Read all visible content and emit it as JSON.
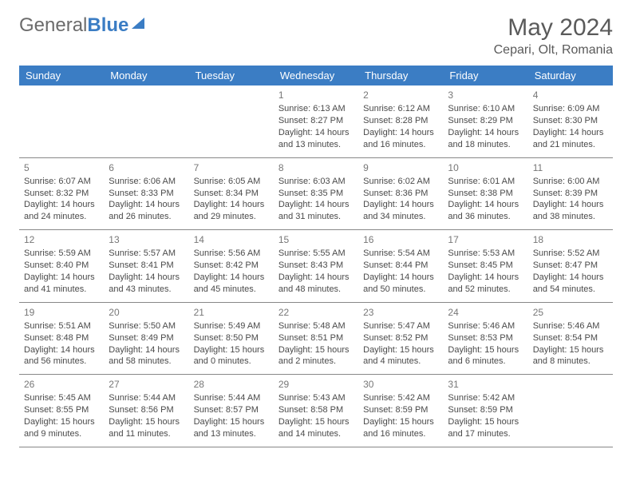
{
  "logo": {
    "word1": "General",
    "word2": "Blue"
  },
  "title": "May 2024",
  "location": "Cepari, Olt, Romania",
  "colors": {
    "header_bg": "#3b7dc4",
    "header_text": "#ffffff",
    "text": "#4a4a4a",
    "border": "#888888",
    "logo_gray": "#6b6b6b",
    "logo_blue": "#3b7dc4"
  },
  "weekdays": [
    "Sunday",
    "Monday",
    "Tuesday",
    "Wednesday",
    "Thursday",
    "Friday",
    "Saturday"
  ],
  "weeks": [
    [
      null,
      null,
      null,
      {
        "day": "1",
        "sunrise": "Sunrise: 6:13 AM",
        "sunset": "Sunset: 8:27 PM",
        "daylight": "Daylight: 14 hours and 13 minutes."
      },
      {
        "day": "2",
        "sunrise": "Sunrise: 6:12 AM",
        "sunset": "Sunset: 8:28 PM",
        "daylight": "Daylight: 14 hours and 16 minutes."
      },
      {
        "day": "3",
        "sunrise": "Sunrise: 6:10 AM",
        "sunset": "Sunset: 8:29 PM",
        "daylight": "Daylight: 14 hours and 18 minutes."
      },
      {
        "day": "4",
        "sunrise": "Sunrise: 6:09 AM",
        "sunset": "Sunset: 8:30 PM",
        "daylight": "Daylight: 14 hours and 21 minutes."
      }
    ],
    [
      {
        "day": "5",
        "sunrise": "Sunrise: 6:07 AM",
        "sunset": "Sunset: 8:32 PM",
        "daylight": "Daylight: 14 hours and 24 minutes."
      },
      {
        "day": "6",
        "sunrise": "Sunrise: 6:06 AM",
        "sunset": "Sunset: 8:33 PM",
        "daylight": "Daylight: 14 hours and 26 minutes."
      },
      {
        "day": "7",
        "sunrise": "Sunrise: 6:05 AM",
        "sunset": "Sunset: 8:34 PM",
        "daylight": "Daylight: 14 hours and 29 minutes."
      },
      {
        "day": "8",
        "sunrise": "Sunrise: 6:03 AM",
        "sunset": "Sunset: 8:35 PM",
        "daylight": "Daylight: 14 hours and 31 minutes."
      },
      {
        "day": "9",
        "sunrise": "Sunrise: 6:02 AM",
        "sunset": "Sunset: 8:36 PM",
        "daylight": "Daylight: 14 hours and 34 minutes."
      },
      {
        "day": "10",
        "sunrise": "Sunrise: 6:01 AM",
        "sunset": "Sunset: 8:38 PM",
        "daylight": "Daylight: 14 hours and 36 minutes."
      },
      {
        "day": "11",
        "sunrise": "Sunrise: 6:00 AM",
        "sunset": "Sunset: 8:39 PM",
        "daylight": "Daylight: 14 hours and 38 minutes."
      }
    ],
    [
      {
        "day": "12",
        "sunrise": "Sunrise: 5:59 AM",
        "sunset": "Sunset: 8:40 PM",
        "daylight": "Daylight: 14 hours and 41 minutes."
      },
      {
        "day": "13",
        "sunrise": "Sunrise: 5:57 AM",
        "sunset": "Sunset: 8:41 PM",
        "daylight": "Daylight: 14 hours and 43 minutes."
      },
      {
        "day": "14",
        "sunrise": "Sunrise: 5:56 AM",
        "sunset": "Sunset: 8:42 PM",
        "daylight": "Daylight: 14 hours and 45 minutes."
      },
      {
        "day": "15",
        "sunrise": "Sunrise: 5:55 AM",
        "sunset": "Sunset: 8:43 PM",
        "daylight": "Daylight: 14 hours and 48 minutes."
      },
      {
        "day": "16",
        "sunrise": "Sunrise: 5:54 AM",
        "sunset": "Sunset: 8:44 PM",
        "daylight": "Daylight: 14 hours and 50 minutes."
      },
      {
        "day": "17",
        "sunrise": "Sunrise: 5:53 AM",
        "sunset": "Sunset: 8:45 PM",
        "daylight": "Daylight: 14 hours and 52 minutes."
      },
      {
        "day": "18",
        "sunrise": "Sunrise: 5:52 AM",
        "sunset": "Sunset: 8:47 PM",
        "daylight": "Daylight: 14 hours and 54 minutes."
      }
    ],
    [
      {
        "day": "19",
        "sunrise": "Sunrise: 5:51 AM",
        "sunset": "Sunset: 8:48 PM",
        "daylight": "Daylight: 14 hours and 56 minutes."
      },
      {
        "day": "20",
        "sunrise": "Sunrise: 5:50 AM",
        "sunset": "Sunset: 8:49 PM",
        "daylight": "Daylight: 14 hours and 58 minutes."
      },
      {
        "day": "21",
        "sunrise": "Sunrise: 5:49 AM",
        "sunset": "Sunset: 8:50 PM",
        "daylight": "Daylight: 15 hours and 0 minutes."
      },
      {
        "day": "22",
        "sunrise": "Sunrise: 5:48 AM",
        "sunset": "Sunset: 8:51 PM",
        "daylight": "Daylight: 15 hours and 2 minutes."
      },
      {
        "day": "23",
        "sunrise": "Sunrise: 5:47 AM",
        "sunset": "Sunset: 8:52 PM",
        "daylight": "Daylight: 15 hours and 4 minutes."
      },
      {
        "day": "24",
        "sunrise": "Sunrise: 5:46 AM",
        "sunset": "Sunset: 8:53 PM",
        "daylight": "Daylight: 15 hours and 6 minutes."
      },
      {
        "day": "25",
        "sunrise": "Sunrise: 5:46 AM",
        "sunset": "Sunset: 8:54 PM",
        "daylight": "Daylight: 15 hours and 8 minutes."
      }
    ],
    [
      {
        "day": "26",
        "sunrise": "Sunrise: 5:45 AM",
        "sunset": "Sunset: 8:55 PM",
        "daylight": "Daylight: 15 hours and 9 minutes."
      },
      {
        "day": "27",
        "sunrise": "Sunrise: 5:44 AM",
        "sunset": "Sunset: 8:56 PM",
        "daylight": "Daylight: 15 hours and 11 minutes."
      },
      {
        "day": "28",
        "sunrise": "Sunrise: 5:44 AM",
        "sunset": "Sunset: 8:57 PM",
        "daylight": "Daylight: 15 hours and 13 minutes."
      },
      {
        "day": "29",
        "sunrise": "Sunrise: 5:43 AM",
        "sunset": "Sunset: 8:58 PM",
        "daylight": "Daylight: 15 hours and 14 minutes."
      },
      {
        "day": "30",
        "sunrise": "Sunrise: 5:42 AM",
        "sunset": "Sunset: 8:59 PM",
        "daylight": "Daylight: 15 hours and 16 minutes."
      },
      {
        "day": "31",
        "sunrise": "Sunrise: 5:42 AM",
        "sunset": "Sunset: 8:59 PM",
        "daylight": "Daylight: 15 hours and 17 minutes."
      },
      null
    ]
  ]
}
